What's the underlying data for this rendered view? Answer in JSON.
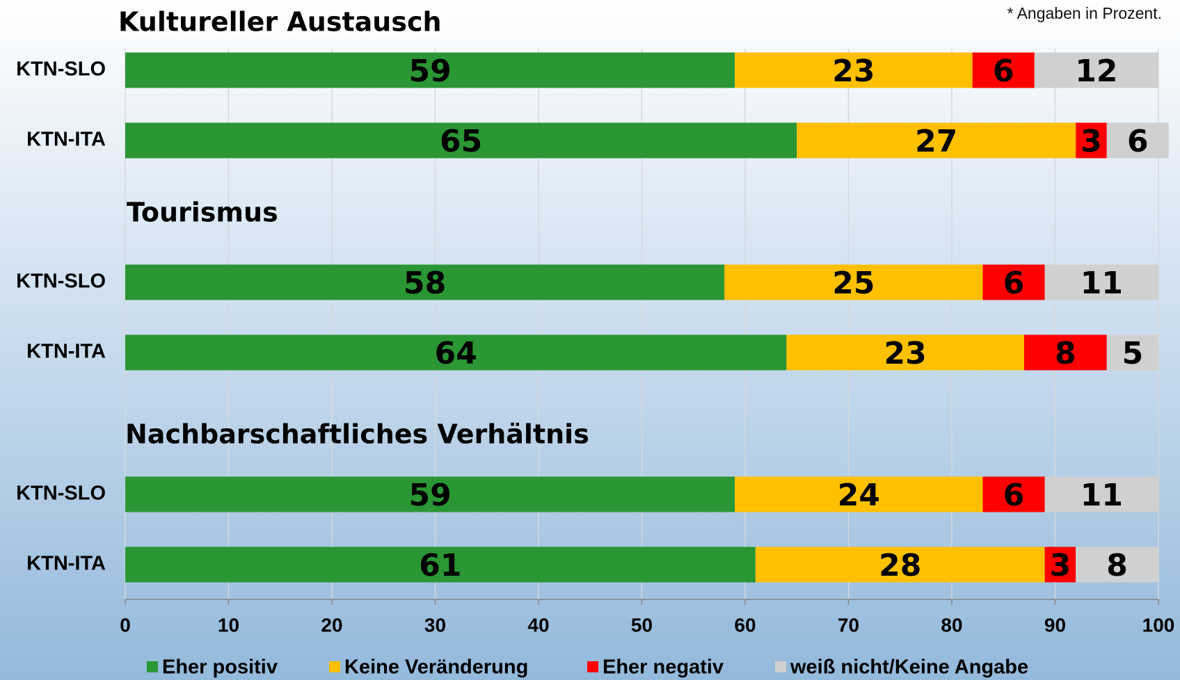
{
  "chart_data": {
    "type": "bar",
    "orientation": "horizontal",
    "stacked": true,
    "note": "* Angaben in Prozent.",
    "groups": [
      {
        "title": "Kultureller Austausch",
        "categories": [
          "KTN-SLO",
          "KTN-ITA"
        ]
      },
      {
        "title": "Tourismus",
        "categories": [
          "KTN-SLO",
          "KTN-ITA"
        ]
      },
      {
        "title": "Nachbarschaftliches Verhältnis",
        "categories": [
          "KTN-SLO",
          "KTN-ITA"
        ]
      }
    ],
    "series": [
      {
        "name": "Eher positiv",
        "color": "#2a9634",
        "values": [
          59,
          65,
          58,
          64,
          59,
          61
        ]
      },
      {
        "name": "Keine Veränderung",
        "color": "#ffc000",
        "values": [
          23,
          27,
          25,
          23,
          24,
          28
        ]
      },
      {
        "name": "Eher negativ",
        "color": "#ff0000",
        "values": [
          6,
          3,
          6,
          8,
          6,
          3
        ]
      },
      {
        "name": "weiß nicht/Keine Angabe",
        "color": "#d0d0d0",
        "values": [
          12,
          6,
          11,
          5,
          11,
          8
        ]
      }
    ],
    "xlim": [
      0,
      100
    ],
    "xticks": [
      0,
      10,
      20,
      30,
      40,
      50,
      60,
      70,
      80,
      90,
      100
    ],
    "grid": true,
    "legend": "bottom"
  }
}
